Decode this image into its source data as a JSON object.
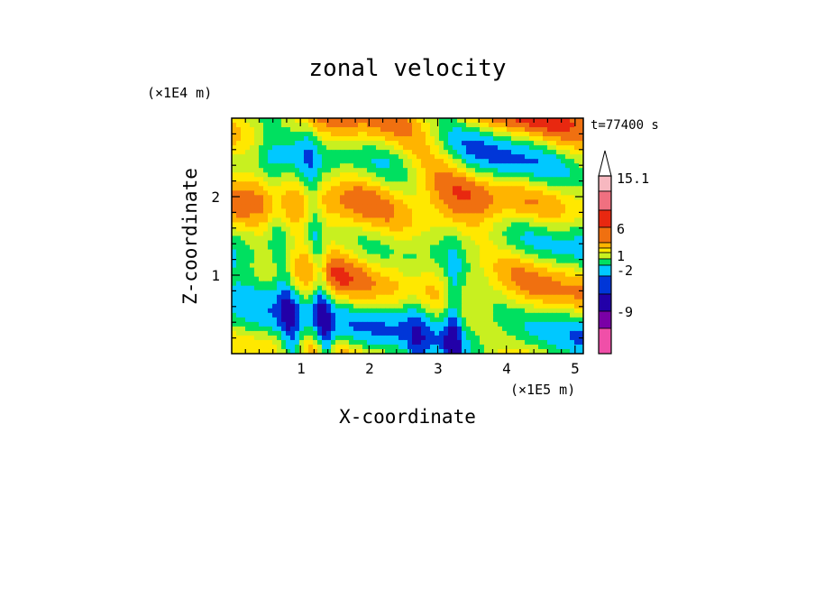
{
  "chart_data": {
    "type": "heatmap",
    "title": "zonal velocity",
    "time_label": "t=77400 s",
    "xlabel": "X-coordinate",
    "ylabel": "Z-coordinate",
    "x_unit": "(×1E5 m)",
    "y_unit": "(×1E4 m)",
    "xlim": [
      0.0,
      5.12
    ],
    "ylim": [
      0.0,
      3.0
    ],
    "x_ticks": [
      "1",
      "2",
      "3",
      "4",
      "5"
    ],
    "y_ticks": [
      "1",
      "2"
    ],
    "colorbar": {
      "labels": [
        "15.1",
        "6",
        "1",
        "-2",
        "-9"
      ],
      "colors": [
        "#f04fa8",
        "#b0178a",
        "#7a00a6",
        "#2200a8",
        "#0036d8",
        "#00c8ff",
        "#00e060",
        "#c8f020",
        "#ffe800",
        "#ffb400",
        "#f07010",
        "#e82810",
        "#f07080",
        "#f7b8c0",
        "#ffffff"
      ]
    }
  }
}
